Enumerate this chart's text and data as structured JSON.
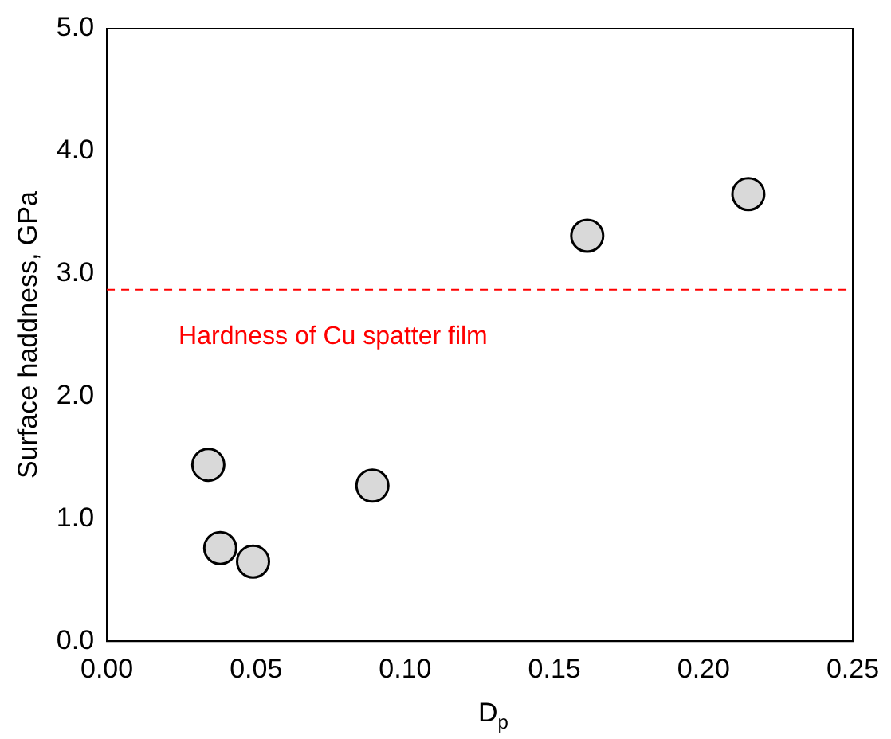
{
  "chart_data": {
    "type": "scatter",
    "xlabel": "D$_{p}$",
    "ylabel": "Surface haddness, GPa",
    "x": [
      0.034,
      0.038,
      0.049,
      0.089,
      0.161,
      0.215
    ],
    "series": [
      {
        "color": "#d9d9d9",
        "values": [
          1.44,
          0.76,
          0.65,
          1.27,
          3.31,
          3.65
        ]
      }
    ],
    "xlim": [
      0,
      0.25
    ],
    "xticks": [
      {
        "value": 0,
        "label": "0.00"
      },
      {
        "value": 0.05,
        "label": "0.05"
      },
      {
        "value": 0.1,
        "label": "0.10"
      },
      {
        "value": 0.15,
        "label": "0.15"
      },
      {
        "value": 0.2,
        "label": "0.20"
      },
      {
        "value": 0.25,
        "label": "0.25"
      }
    ],
    "ylim": [
      0,
      5
    ],
    "yticks": [
      {
        "value": 0,
        "label": "0.0"
      },
      {
        "value": 1,
        "label": "1.0"
      },
      {
        "value": 2,
        "label": "2.0"
      },
      {
        "value": 3,
        "label": "3.0"
      },
      {
        "value": 4,
        "label": "4.0"
      },
      {
        "value": 5,
        "label": "5.0"
      }
    ],
    "ref_lines": [
      {
        "axis": "y",
        "value": 2.87,
        "label": "Hardness of Cu spatter film",
        "color": "#ff0000",
        "line_style": "dashed"
      }
    ],
    "grid": false,
    "legend": false,
    "marker": "circle"
  }
}
